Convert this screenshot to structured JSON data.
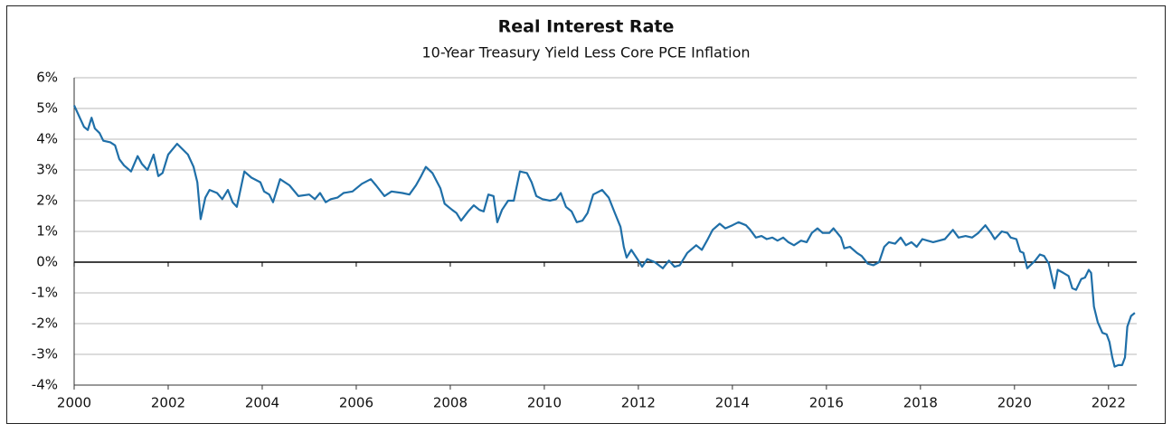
{
  "chart_data": {
    "type": "line",
    "title": "Real Interest Rate",
    "subtitle": "10-Year Treasury Yield Less Core PCE Inflation",
    "x": [
      2000.0,
      2000.21,
      2000.29,
      2000.37,
      2000.44,
      2000.54,
      2000.62,
      2000.77,
      2000.87,
      2000.96,
      2001.06,
      2001.21,
      2001.35,
      2001.44,
      2001.56,
      2001.69,
      2001.79,
      2001.88,
      2002.0,
      2002.08,
      2002.19,
      2002.42,
      2002.54,
      2002.62,
      2002.69,
      2002.79,
      2002.88,
      2003.04,
      2003.15,
      2003.27,
      2003.37,
      2003.46,
      2003.62,
      2003.77,
      2003.96,
      2004.04,
      2004.15,
      2004.23,
      2004.38,
      2004.58,
      2004.77,
      2005.0,
      2005.12,
      2005.23,
      2005.35,
      2005.46,
      2005.6,
      2005.73,
      2005.92,
      2006.12,
      2006.31,
      2006.42,
      2006.6,
      2006.75,
      2006.98,
      2007.13,
      2007.27,
      2007.38,
      2007.48,
      2007.62,
      2007.79,
      2007.88,
      2008.04,
      2008.13,
      2008.23,
      2008.38,
      2008.5,
      2008.62,
      2008.71,
      2008.81,
      2008.92,
      2009.0,
      2009.1,
      2009.23,
      2009.35,
      2009.48,
      2009.63,
      2009.73,
      2009.83,
      2009.96,
      2010.12,
      2010.25,
      2010.35,
      2010.46,
      2010.58,
      2010.69,
      2010.81,
      2010.92,
      2011.04,
      2011.23,
      2011.37,
      2011.5,
      2011.62,
      2011.69,
      2011.75,
      2011.85,
      2011.98,
      2012.08,
      2012.19,
      2012.35,
      2012.52,
      2012.65,
      2012.77,
      2012.88,
      2013.04,
      2013.23,
      2013.35,
      2013.46,
      2013.58,
      2013.73,
      2013.85,
      2014.0,
      2014.13,
      2014.29,
      2014.38,
      2014.5,
      2014.62,
      2014.73,
      2014.85,
      2014.96,
      2015.08,
      2015.19,
      2015.31,
      2015.46,
      2015.58,
      2015.69,
      2015.81,
      2015.92,
      2016.06,
      2016.15,
      2016.31,
      2016.38,
      2016.5,
      2016.65,
      2016.75,
      2016.88,
      2017.0,
      2017.12,
      2017.23,
      2017.33,
      2017.46,
      2017.58,
      2017.69,
      2017.81,
      2017.92,
      2018.04,
      2018.15,
      2018.27,
      2018.52,
      2018.69,
      2018.81,
      2018.96,
      2019.1,
      2019.23,
      2019.38,
      2019.5,
      2019.58,
      2019.73,
      2019.85,
      2019.92,
      2020.04,
      2020.12,
      2020.19,
      2020.27,
      2020.44,
      2020.54,
      2020.63,
      2020.73,
      2020.85,
      2020.92,
      2021.04,
      2021.15,
      2021.23,
      2021.31,
      2021.42,
      2021.5,
      2021.58,
      2021.63,
      2021.69,
      2021.77,
      2021.87,
      2021.96,
      2022.02,
      2022.08,
      2022.13,
      2022.21,
      2022.29,
      2022.35,
      2022.4,
      2022.48,
      2022.56
    ],
    "series": [
      {
        "color": "#1f6fa8",
        "values": [
          5.1,
          4.4,
          4.3,
          4.7,
          4.35,
          4.2,
          3.95,
          3.9,
          3.8,
          3.35,
          3.15,
          2.95,
          3.45,
          3.2,
          3.0,
          3.5,
          2.8,
          2.9,
          3.5,
          3.65,
          3.85,
          3.5,
          3.1,
          2.6,
          1.4,
          2.1,
          2.35,
          2.25,
          2.05,
          2.35,
          1.95,
          1.8,
          2.95,
          2.75,
          2.6,
          2.3,
          2.2,
          1.95,
          2.7,
          2.5,
          2.15,
          2.2,
          2.05,
          2.25,
          1.95,
          2.05,
          2.1,
          2.25,
          2.3,
          2.55,
          2.7,
          2.5,
          2.15,
          2.3,
          2.25,
          2.2,
          2.5,
          2.8,
          3.1,
          2.9,
          2.4,
          1.9,
          1.7,
          1.6,
          1.35,
          1.65,
          1.85,
          1.7,
          1.65,
          2.2,
          2.15,
          1.3,
          1.7,
          2.0,
          2.0,
          2.95,
          2.9,
          2.6,
          2.15,
          2.05,
          2.0,
          2.05,
          2.25,
          1.8,
          1.65,
          1.3,
          1.35,
          1.6,
          2.2,
          2.35,
          2.1,
          1.6,
          1.15,
          0.5,
          0.15,
          0.4,
          0.1,
          -0.15,
          0.1,
          0.0,
          -0.2,
          0.05,
          -0.15,
          -0.1,
          0.3,
          0.55,
          0.4,
          0.7,
          1.05,
          1.25,
          1.1,
          1.2,
          1.3,
          1.2,
          1.05,
          0.8,
          0.85,
          0.75,
          0.8,
          0.7,
          0.8,
          0.65,
          0.55,
          0.7,
          0.65,
          0.95,
          1.1,
          0.95,
          0.95,
          1.1,
          0.8,
          0.45,
          0.5,
          0.3,
          0.2,
          -0.05,
          -0.1,
          0.0,
          0.5,
          0.65,
          0.6,
          0.8,
          0.55,
          0.65,
          0.5,
          0.75,
          0.7,
          0.65,
          0.75,
          1.05,
          0.8,
          0.85,
          0.8,
          0.95,
          1.2,
          0.95,
          0.75,
          1.0,
          0.95,
          0.8,
          0.75,
          0.35,
          0.3,
          -0.2,
          0.05,
          0.25,
          0.2,
          -0.05,
          -0.85,
          -0.25,
          -0.35,
          -0.45,
          -0.85,
          -0.9,
          -0.55,
          -0.5,
          -0.25,
          -0.35,
          -1.45,
          -1.95,
          -2.3,
          -2.35,
          -2.6,
          -3.1,
          -3.4,
          -3.35,
          -3.35,
          -3.1,
          -2.1,
          -1.75,
          -1.65
        ]
      }
    ],
    "xlim": [
      2000,
      2022.6
    ],
    "xticks": [
      2000,
      2002,
      2004,
      2006,
      2008,
      2010,
      2012,
      2014,
      2016,
      2018,
      2020,
      2022
    ],
    "ylim": [
      -4,
      6
    ],
    "yticks": [
      {
        "value": -4,
        "label": "-4%"
      },
      {
        "value": -3,
        "label": "-3%"
      },
      {
        "value": -2,
        "label": "-2%"
      },
      {
        "value": -1,
        "label": "-1%"
      },
      {
        "value": 0,
        "label": "0%"
      },
      {
        "value": 1,
        "label": "1%"
      },
      {
        "value": 2,
        "label": "2%"
      },
      {
        "value": 3,
        "label": "3%"
      },
      {
        "value": 4,
        "label": "4%"
      },
      {
        "value": 5,
        "label": "5%"
      },
      {
        "value": 6,
        "label": "6%"
      }
    ],
    "grid": true
  }
}
